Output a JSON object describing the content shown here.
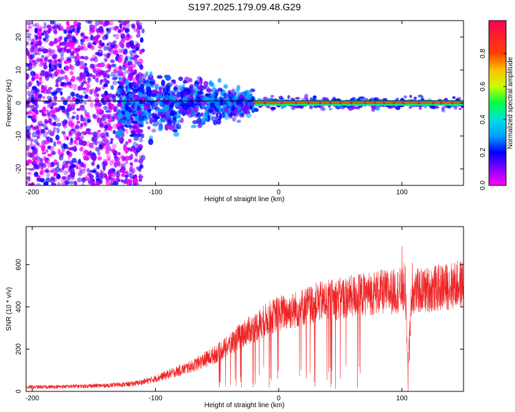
{
  "title": "S197.2025.179.09.48.G29",
  "colors": {
    "snr_line": "#ee2222",
    "carrier_line": "#000000",
    "colormap": [
      "#ff00ff",
      "#8800ff",
      "#0000ff",
      "#00a0ff",
      "#00e0e0",
      "#00ff40",
      "#c8ff00",
      "#ffc000",
      "#ff4000",
      "#ff0055"
    ]
  },
  "chart_data": [
    {
      "type": "heatmap",
      "xlabel": "Height of straight line (km)",
      "ylabel": "Frequency (Hz)",
      "xlim": [
        -205,
        150
      ],
      "ylim": [
        -25,
        25
      ],
      "xticks": [
        -200,
        -100,
        0,
        100
      ],
      "yticks": [
        -20,
        -10,
        0,
        10,
        20
      ],
      "carrier_frequency": 0,
      "colorbar": {
        "label": "Normalized spectral amplitude",
        "range": [
          0,
          1
        ],
        "ticks": [
          0.0,
          0.2,
          0.4,
          0.6,
          0.8
        ]
      },
      "description_values": {
        "strong_carrier_start_x": -20,
        "strong_carrier_amplitude": 0.9,
        "noise_region_x": [
          -205,
          -110
        ],
        "transition_region_x": [
          -130,
          -20
        ]
      }
    },
    {
      "type": "line",
      "xlabel": "Height of straight line (km)",
      "ylabel": "SNR (10 * v/v)",
      "xlim": [
        -205,
        150
      ],
      "ylim": [
        0,
        780
      ],
      "xticks": [
        -200,
        -100,
        0,
        100
      ],
      "yticks": [
        0,
        200,
        400,
        600
      ],
      "series": [
        {
          "x": [
            -205,
            -180,
            -160,
            -140,
            -120,
            -110,
            -100,
            -90,
            -80,
            -70,
            -60,
            -50,
            -40,
            -30,
            -20,
            -10,
            0,
            10,
            20,
            30,
            40,
            50,
            60,
            70,
            80,
            90,
            100,
            103,
            105,
            108,
            120,
            130,
            140,
            150
          ],
          "values": [
            20,
            22,
            25,
            28,
            35,
            45,
            60,
            80,
            100,
            120,
            150,
            180,
            220,
            270,
            300,
            340,
            370,
            380,
            400,
            420,
            430,
            440,
            450,
            460,
            470,
            470,
            480,
            460,
            120,
            470,
            480,
            490,
            500,
            510
          ]
        }
      ]
    }
  ]
}
